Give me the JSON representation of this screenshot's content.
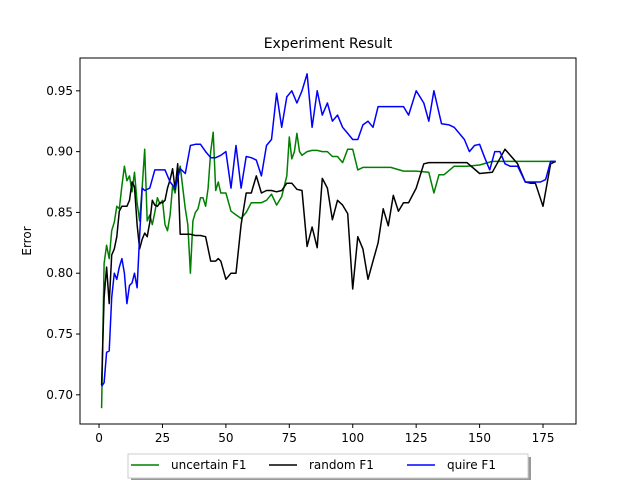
{
  "chart_data": {
    "type": "line",
    "title": "Experiment Result",
    "xlabel": "",
    "ylabel": "Error",
    "xlim": [
      -7.5,
      188
    ],
    "ylim": [
      0.676,
      0.977
    ],
    "xticks": [
      0,
      25,
      50,
      75,
      100,
      125,
      150,
      175
    ],
    "yticks": [
      0.7,
      0.75,
      0.8,
      0.85,
      0.9,
      0.95
    ],
    "xtick_labels": [
      "0",
      "25",
      "50",
      "75",
      "100",
      "125",
      "150",
      "175"
    ],
    "ytick_labels": [
      "0.70",
      "0.75",
      "0.80",
      "0.85",
      "0.90",
      "0.95"
    ],
    "grid": false,
    "legend": {
      "placement": "bottom-center-outside",
      "ncol": 3
    },
    "series": [
      {
        "name": "uncertain F1",
        "color": "#008000",
        "x": [
          1,
          2,
          3,
          4,
          5,
          6,
          7,
          8,
          9,
          10,
          11,
          12,
          13,
          14,
          15,
          16,
          17,
          18,
          19,
          20,
          21,
          22,
          23,
          24,
          25,
          26,
          27,
          28,
          29,
          30,
          31,
          32,
          33,
          34,
          35,
          36,
          37,
          38,
          39,
          40,
          41,
          42,
          43,
          44,
          45,
          46,
          47,
          48,
          50,
          52,
          54,
          56,
          58,
          60,
          62,
          64,
          66,
          68,
          70,
          72,
          74,
          75,
          76,
          77,
          78,
          79,
          80,
          82,
          84,
          86,
          88,
          90,
          92,
          94,
          96,
          98,
          100,
          102,
          104,
          106,
          110,
          115,
          120,
          125,
          130,
          132,
          134,
          136,
          140,
          145,
          150,
          155,
          160,
          165,
          170,
          175,
          180
        ],
        "y": [
          0.689,
          0.808,
          0.823,
          0.812,
          0.835,
          0.842,
          0.855,
          0.853,
          0.872,
          0.888,
          0.876,
          0.88,
          0.867,
          0.883,
          0.858,
          0.843,
          0.871,
          0.902,
          0.843,
          0.848,
          0.84,
          0.85,
          0.862,
          0.857,
          0.86,
          0.84,
          0.835,
          0.848,
          0.872,
          0.866,
          0.881,
          0.888,
          0.87,
          0.853,
          0.84,
          0.8,
          0.843,
          0.85,
          0.853,
          0.862,
          0.862,
          0.855,
          0.87,
          0.9,
          0.916,
          0.868,
          0.875,
          0.866,
          0.866,
          0.851,
          0.848,
          0.845,
          0.85,
          0.858,
          0.858,
          0.858,
          0.86,
          0.865,
          0.856,
          0.863,
          0.88,
          0.912,
          0.894,
          0.9,
          0.915,
          0.9,
          0.897,
          0.9,
          0.901,
          0.901,
          0.9,
          0.9,
          0.896,
          0.896,
          0.891,
          0.902,
          0.902,
          0.885,
          0.887,
          0.887,
          0.887,
          0.887,
          0.884,
          0.884,
          0.883,
          0.866,
          0.881,
          0.881,
          0.888,
          0.888,
          0.889,
          0.892,
          0.892,
          0.892,
          0.892,
          0.892,
          0.892
        ]
      },
      {
        "name": "random F1",
        "color": "#000000",
        "x": [
          1,
          2,
          3,
          4,
          5,
          6,
          7,
          8,
          9,
          10,
          11,
          12,
          13,
          14,
          15,
          16,
          17,
          18,
          19,
          20,
          21,
          22,
          23,
          24,
          25,
          26,
          27,
          28,
          29,
          30,
          31,
          32,
          33,
          34,
          35,
          36,
          38,
          40,
          42,
          44,
          45,
          46,
          47,
          48,
          50,
          52,
          54,
          56,
          58,
          60,
          62,
          64,
          66,
          68,
          70,
          72,
          74,
          76,
          78,
          80,
          82,
          84,
          86,
          88,
          90,
          92,
          94,
          96,
          98,
          100,
          102,
          104,
          106,
          108,
          110,
          112,
          114,
          116,
          118,
          120,
          122,
          125,
          128,
          130,
          135,
          140,
          145,
          150,
          155,
          160,
          165,
          168,
          170,
          172,
          175,
          178,
          180
        ],
        "y": [
          0.708,
          0.78,
          0.805,
          0.775,
          0.815,
          0.82,
          0.83,
          0.851,
          0.855,
          0.855,
          0.855,
          0.86,
          0.875,
          0.871,
          0.84,
          0.82,
          0.828,
          0.833,
          0.83,
          0.842,
          0.86,
          0.856,
          0.855,
          0.858,
          0.858,
          0.86,
          0.87,
          0.877,
          0.886,
          0.869,
          0.89,
          0.832,
          0.832,
          0.832,
          0.832,
          0.832,
          0.831,
          0.831,
          0.83,
          0.81,
          0.81,
          0.81,
          0.812,
          0.81,
          0.795,
          0.8,
          0.8,
          0.84,
          0.866,
          0.866,
          0.88,
          0.866,
          0.868,
          0.868,
          0.867,
          0.868,
          0.874,
          0.874,
          0.869,
          0.868,
          0.822,
          0.838,
          0.821,
          0.878,
          0.87,
          0.844,
          0.86,
          0.856,
          0.849,
          0.787,
          0.83,
          0.82,
          0.795,
          0.81,
          0.825,
          0.853,
          0.839,
          0.864,
          0.851,
          0.858,
          0.858,
          0.87,
          0.89,
          0.891,
          0.891,
          0.891,
          0.891,
          0.882,
          0.883,
          0.902,
          0.89,
          0.875,
          0.874,
          0.874,
          0.855,
          0.89,
          0.892
        ]
      },
      {
        "name": "quire F1",
        "color": "#0000ff",
        "x": [
          1,
          2,
          3,
          4,
          5,
          6,
          7,
          8,
          9,
          10,
          11,
          12,
          13,
          14,
          15,
          16,
          17,
          18,
          20,
          22,
          24,
          26,
          28,
          30,
          32,
          34,
          36,
          38,
          40,
          42,
          44,
          46,
          48,
          50,
          52,
          54,
          56,
          58,
          60,
          62,
          64,
          66,
          68,
          70,
          72,
          74,
          76,
          78,
          80,
          82,
          84,
          86,
          88,
          90,
          92,
          94,
          96,
          98,
          100,
          102,
          104,
          106,
          108,
          110,
          112,
          115,
          118,
          120,
          122,
          125,
          128,
          130,
          132,
          135,
          138,
          140,
          142,
          144,
          146,
          148,
          150,
          152,
          154,
          156,
          158,
          160,
          162,
          165,
          168,
          170,
          172,
          174,
          176,
          178,
          180
        ],
        "y": [
          0.707,
          0.71,
          0.735,
          0.736,
          0.78,
          0.8,
          0.795,
          0.805,
          0.812,
          0.8,
          0.775,
          0.79,
          0.792,
          0.8,
          0.788,
          0.83,
          0.87,
          0.868,
          0.87,
          0.885,
          0.885,
          0.885,
          0.875,
          0.87,
          0.886,
          0.882,
          0.905,
          0.906,
          0.906,
          0.9,
          0.895,
          0.895,
          0.897,
          0.9,
          0.87,
          0.905,
          0.87,
          0.896,
          0.895,
          0.893,
          0.88,
          0.905,
          0.91,
          0.948,
          0.92,
          0.945,
          0.95,
          0.94,
          0.95,
          0.964,
          0.92,
          0.95,
          0.93,
          0.94,
          0.925,
          0.93,
          0.92,
          0.915,
          0.91,
          0.91,
          0.922,
          0.925,
          0.92,
          0.937,
          0.937,
          0.937,
          0.937,
          0.937,
          0.93,
          0.95,
          0.94,
          0.925,
          0.95,
          0.923,
          0.922,
          0.92,
          0.915,
          0.91,
          0.9,
          0.905,
          0.906,
          0.895,
          0.885,
          0.9,
          0.9,
          0.89,
          0.888,
          0.888,
          0.875,
          0.875,
          0.875,
          0.875,
          0.877,
          0.892,
          0.892
        ]
      }
    ]
  }
}
